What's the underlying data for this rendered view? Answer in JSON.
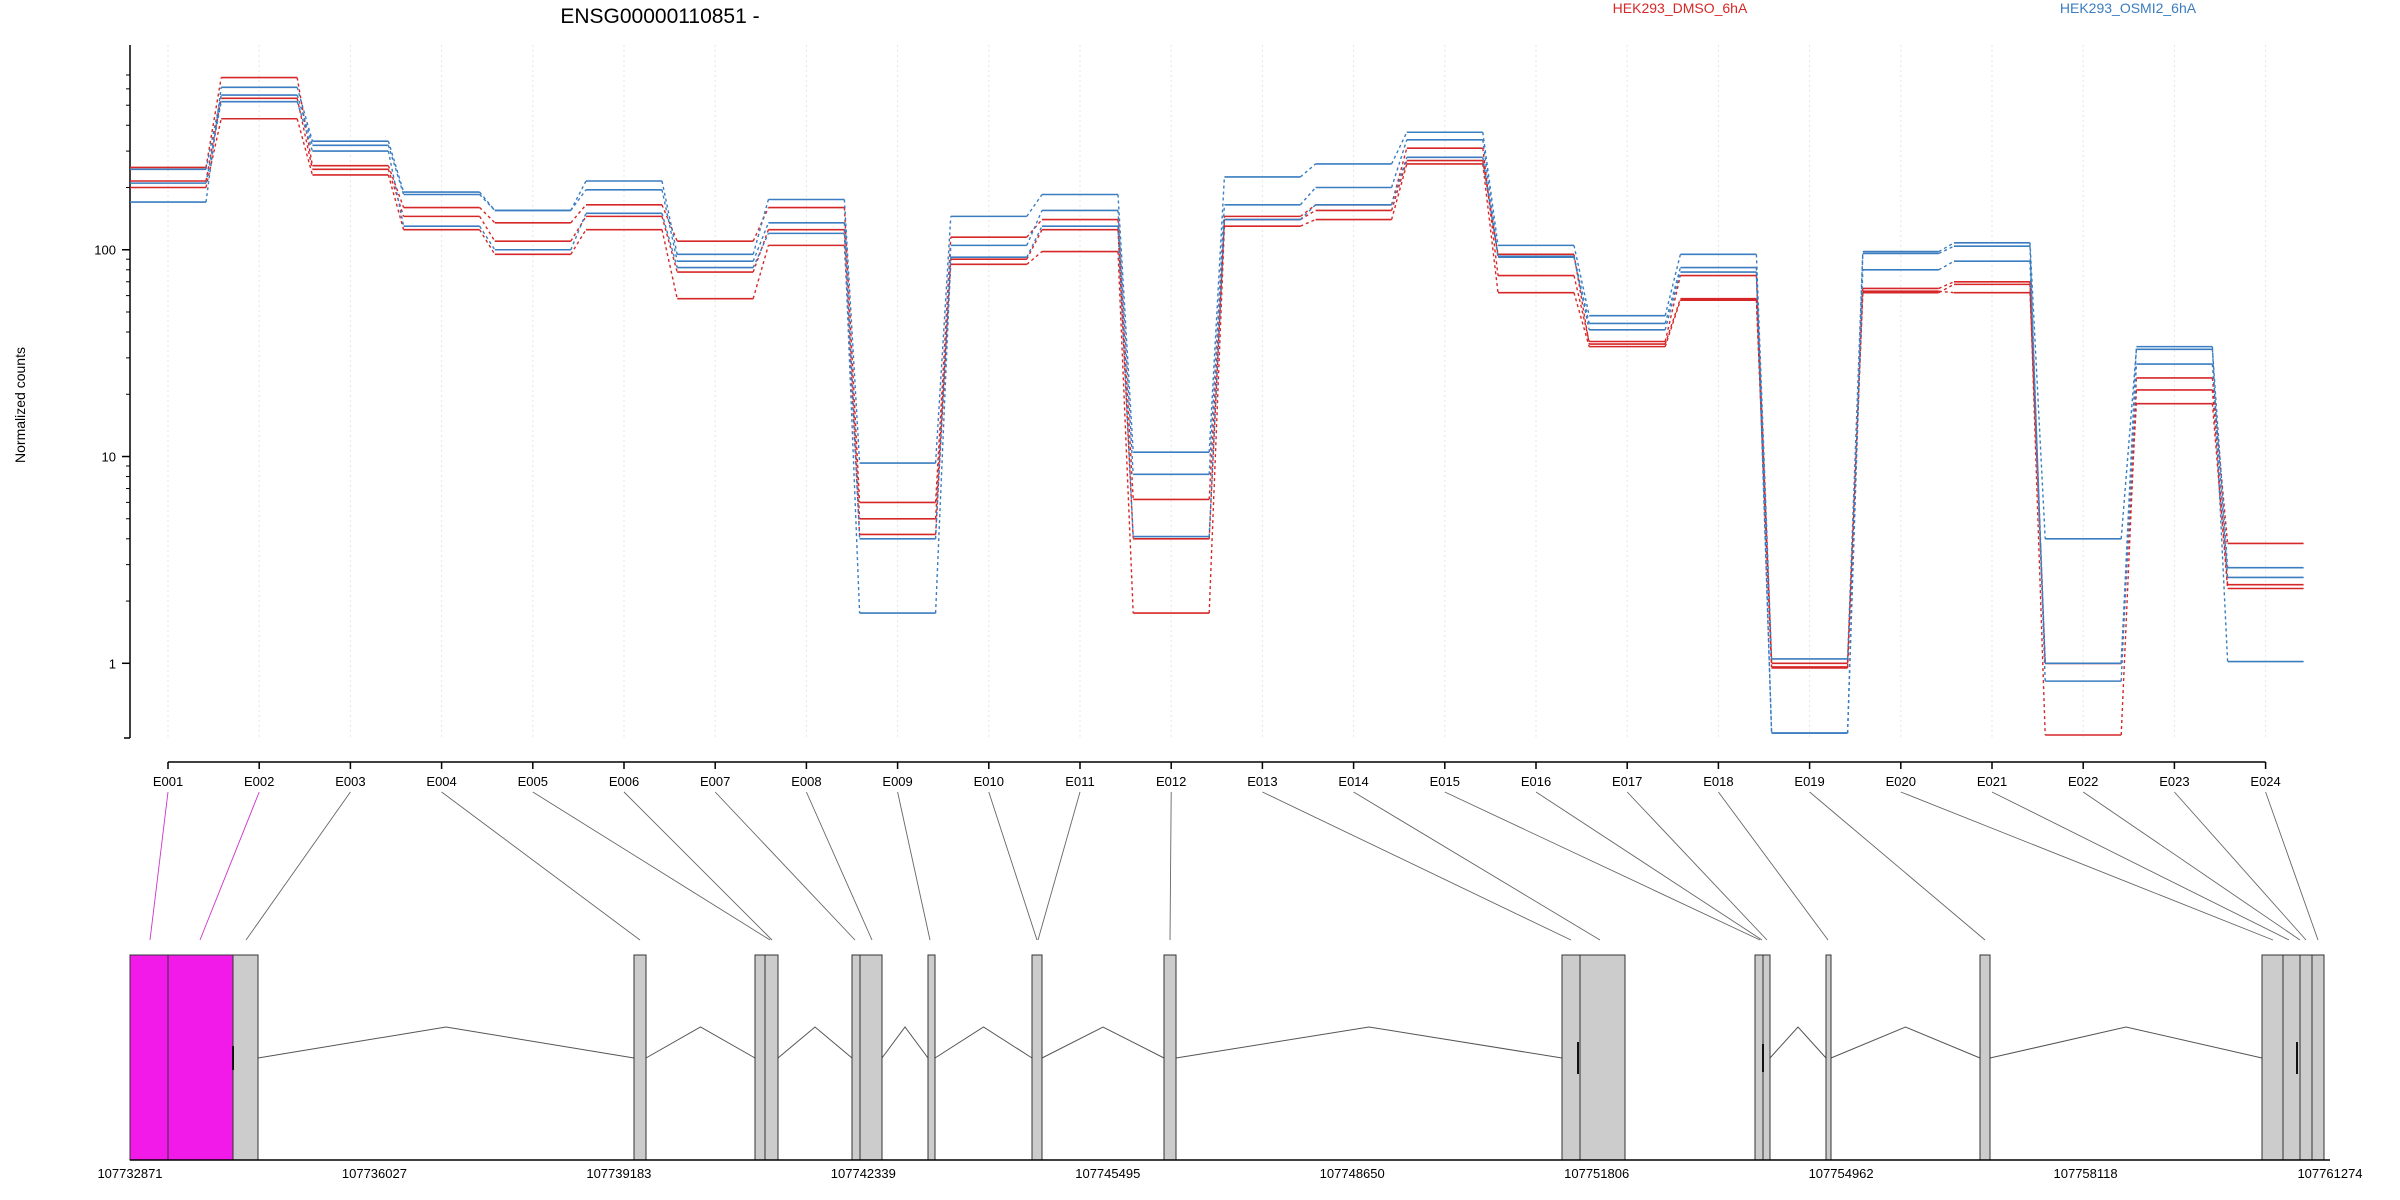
{
  "chart_data": {
    "type": "line",
    "title": "ENSG00000110851 -",
    "ylabel": "Normalized counts",
    "xlabel": "",
    "y_scale": "log",
    "ylim": [
      0.4,
      800
    ],
    "y_ticks": [
      1,
      10,
      100
    ],
    "y_tick_labels": [
      "1",
      "10",
      "100"
    ],
    "grid": "vertical dotted",
    "legend_placement": "top",
    "categories": [
      "E001",
      "E002",
      "E003",
      "E004",
      "E005",
      "E006",
      "E007",
      "E008",
      "E009",
      "E010",
      "E011",
      "E012",
      "E013",
      "E014",
      "E015",
      "E016",
      "E017",
      "E018",
      "E019",
      "E020",
      "E021",
      "E022",
      "E023",
      "E024"
    ],
    "series": [
      {
        "group": "HEK293_DMSO_6hA",
        "color": "#d62728",
        "values": [
          250,
          680,
          255,
          160,
          135,
          165,
          110,
          160,
          6,
          115,
          140,
          6.2,
          145,
          165,
          310,
          75,
          36,
          75,
          1,
          65,
          70,
          1,
          24,
          3.8
        ]
      },
      {
        "group": "HEK293_DMSO_6hA",
        "color": "#d62728",
        "values": [
          215,
          540,
          245,
          145,
          110,
          145,
          78,
          125,
          5,
          90,
          125,
          4,
          140,
          155,
          270,
          95,
          35,
          58,
          0.95,
          62,
          68,
          0.45,
          21,
          2.4
        ]
      },
      {
        "group": "HEK293_DMSO_6hA",
        "color": "#d62728",
        "values": [
          200,
          430,
          230,
          125,
          95,
          125,
          58,
          105,
          4.2,
          85,
          98,
          1.75,
          130,
          140,
          260,
          62,
          34,
          57,
          0.96,
          63,
          62,
          1,
          18,
          2.3
        ]
      },
      {
        "group": "HEK293_OSMI2_6hA",
        "color": "#3a7dc0",
        "values": [
          170,
          610,
          335,
          190,
          155,
          215,
          95,
          175,
          9.3,
          145,
          185,
          10.5,
          225,
          260,
          370,
          105,
          48,
          95,
          1.05,
          98,
          108,
          4,
          33,
          2.9
        ]
      },
      {
        "group": "HEK293_OSMI2_6hA",
        "color": "#3a7dc0",
        "values": [
          245,
          560,
          320,
          185,
          155,
          195,
          88,
          135,
          4,
          105,
          155,
          8.2,
          165,
          200,
          340,
          93,
          44,
          82,
          0.46,
          96,
          104,
          0.82,
          28,
          2.6
        ]
      },
      {
        "group": "HEK293_OSMI2_6hA",
        "color": "#3a7dc0",
        "values": [
          210,
          520,
          300,
          130,
          100,
          150,
          82,
          120,
          1.75,
          92,
          130,
          4.1,
          140,
          165,
          280,
          92,
          41,
          78,
          0.46,
          80,
          88,
          1,
          34,
          1.02
        ]
      }
    ],
    "legend": [
      {
        "label": "HEK293_DMSO_6hA",
        "color": "#d62728"
      },
      {
        "label": "HEK293_OSMI2_6hA",
        "color": "#3a7dc0"
      }
    ],
    "genomic_axis": {
      "tick_labels": [
        "107732871",
        "107736027",
        "107739183",
        "107742339",
        "107745495",
        "107748650",
        "107751806",
        "107754962",
        "107758118",
        "107761274"
      ],
      "range": [
        107732871,
        107761274
      ]
    },
    "highlighted_exon_color": "#f21ae8",
    "exon_color": "#cccccc"
  }
}
